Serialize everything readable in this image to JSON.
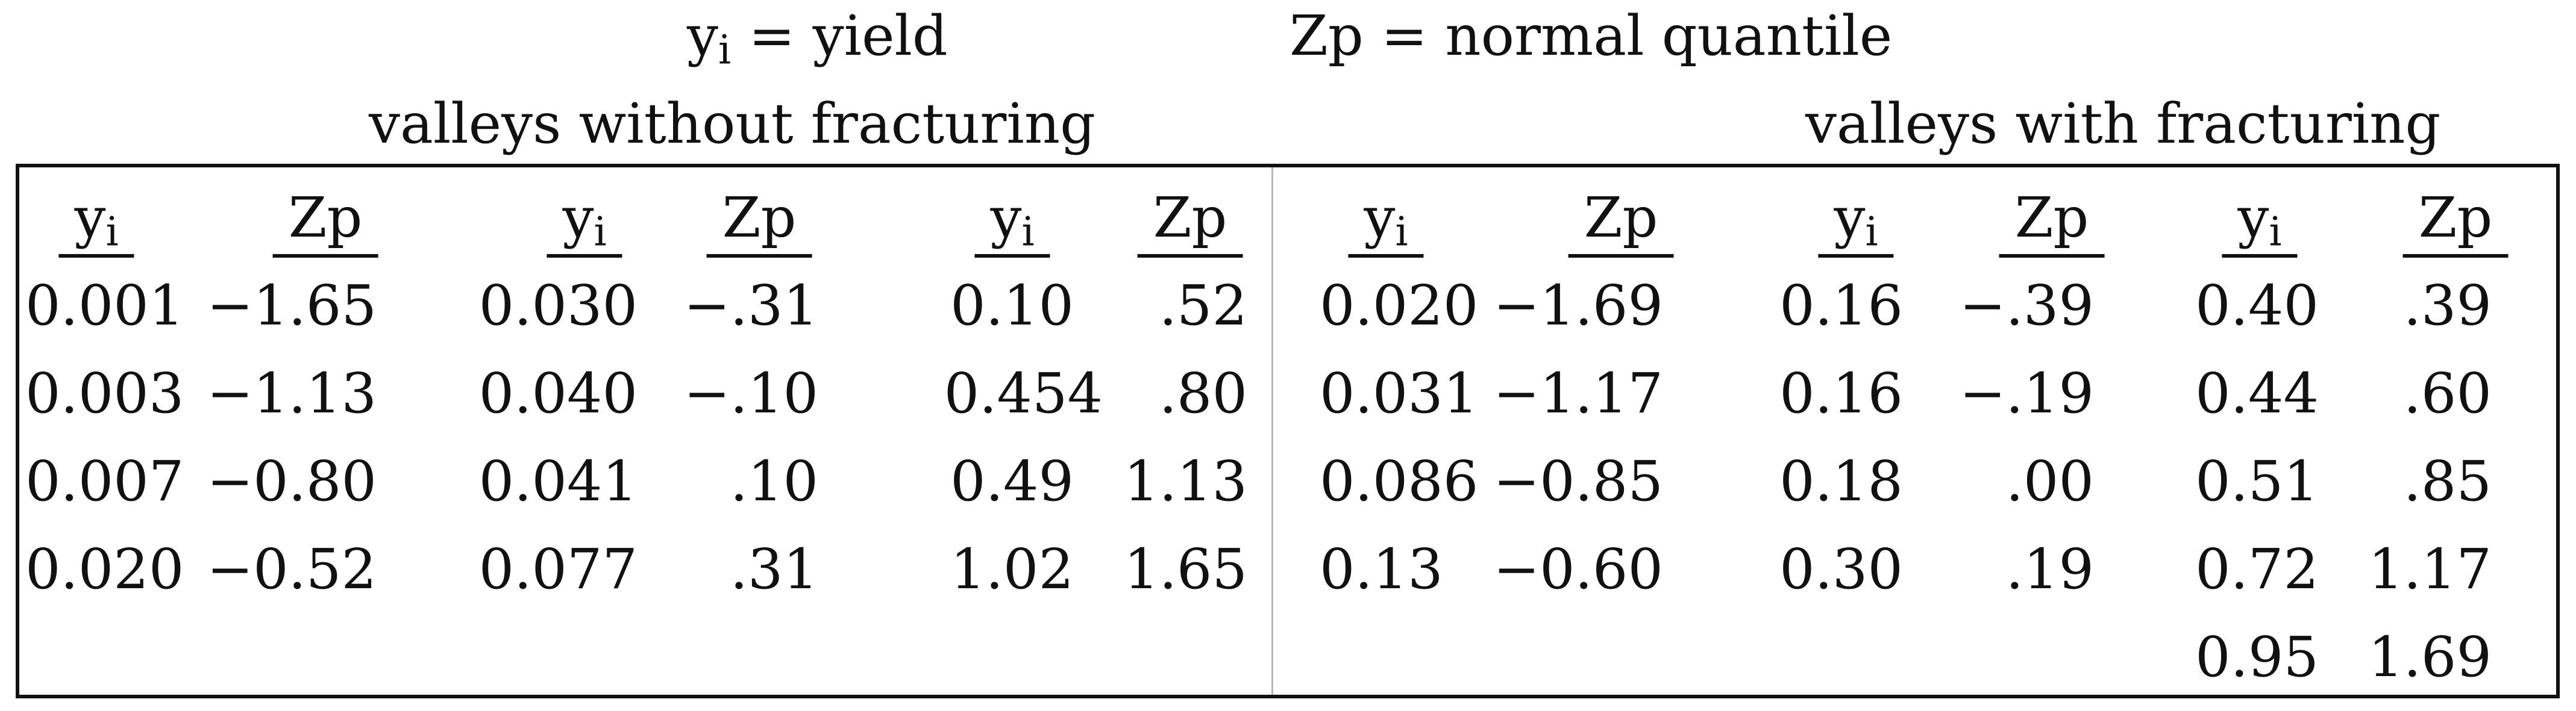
{
  "legend": {
    "yield_symbol": "y",
    "yield_sub": "i",
    "yield_text": " = yield",
    "quantile_text": "Zp = normal quantile"
  },
  "groups": [
    {
      "title": "valleys without fracturing"
    },
    {
      "title": "valleys with fracturing"
    }
  ],
  "headers": {
    "y": "y",
    "y_sub": "i",
    "z": "Zp"
  },
  "table": {
    "col1": {
      "y": [
        "0.001",
        "0.003",
        "0.007",
        "0.020"
      ],
      "z": [
        "−1.65",
        "−1.13",
        "−0.80",
        "−0.52"
      ]
    },
    "col2": {
      "y": [
        "0.030",
        "0.040",
        "0.041",
        "0.077"
      ],
      "z": [
        "−.31",
        "−.10",
        ".10",
        ".31"
      ]
    },
    "col3": {
      "y": [
        "0.10",
        "0.454",
        "0.49",
        "1.02"
      ],
      "z": [
        ".52",
        ".80",
        "1.13",
        "1.65"
      ]
    },
    "col4": {
      "y": [
        "0.020",
        "0.031",
        "0.086",
        "0.13"
      ],
      "z": [
        "−1.69",
        "−1.17",
        "−0.85",
        "−0.60"
      ]
    },
    "col5": {
      "y": [
        "0.16",
        "0.16",
        "0.18",
        "0.30"
      ],
      "z": [
        "−.39",
        "−.19",
        ".00",
        ".19"
      ]
    },
    "col6": {
      "y": [
        "0.40",
        "0.44",
        "0.51",
        "0.72",
        "0.95"
      ],
      "z": [
        ".39",
        ".60",
        ".85",
        "1.17",
        "1.69"
      ]
    }
  }
}
